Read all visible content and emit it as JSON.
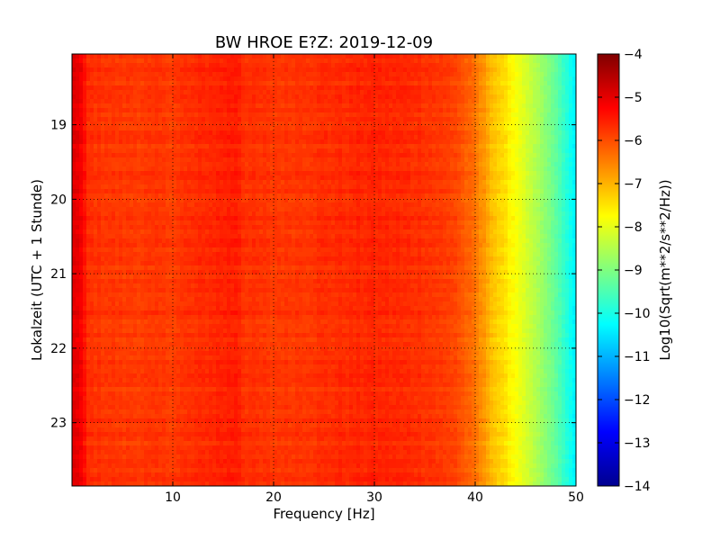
{
  "chart_data": {
    "type": "heatmap",
    "title": "BW HROE E?Z: 2019-12-09",
    "xlabel": "Frequency [Hz]",
    "ylabel": "Lokalzeit (UTC + 1 Stunde)",
    "xlim": [
      0,
      50
    ],
    "ylim": [
      18.05,
      23.85
    ],
    "x_ticks": [
      10,
      20,
      30,
      40,
      50
    ],
    "y_ticks": [
      19,
      20,
      21,
      22,
      23
    ],
    "grid": true,
    "colormap": "jet",
    "colorbar": {
      "label": "Log10(Sqrt(m**2/s**2/Hz))",
      "range": [
        -14,
        -4
      ],
      "ticks": [
        -4,
        -5,
        -6,
        -7,
        -8,
        -9,
        -10,
        -11,
        -12,
        -13,
        -14
      ]
    },
    "spectrum_profile": {
      "frequency_hz": [
        0,
        1,
        1.5,
        5,
        10,
        16.5,
        17,
        20,
        25,
        30,
        35,
        38,
        40,
        42,
        44,
        46,
        48,
        50
      ],
      "level": [
        -4.9,
        -5.2,
        -5.7,
        -5.8,
        -5.8,
        -5.5,
        -5.7,
        -5.8,
        -5.7,
        -5.6,
        -5.7,
        -5.9,
        -6.4,
        -7.2,
        -7.8,
        -8.5,
        -9.3,
        -10.4
      ]
    }
  }
}
